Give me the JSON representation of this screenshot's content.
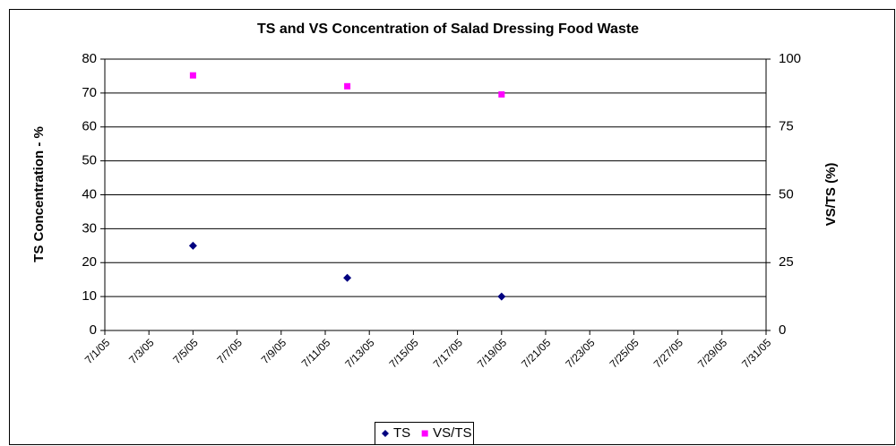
{
  "chart_data": {
    "type": "scatter",
    "title": "TS and VS Concentration of Salad Dressing Food Waste",
    "ylabel": "TS Concentration - %",
    "y2label": "VS/TS (%)",
    "x": [
      "7/5/05",
      "7/12/05",
      "7/19/05"
    ],
    "xlim": [
      "7/1/05",
      "7/31/05"
    ],
    "xticks": [
      "7/1/05",
      "7/3/05",
      "7/5/05",
      "7/7/05",
      "7/9/05",
      "7/11/05",
      "7/13/05",
      "7/15/05",
      "7/17/05",
      "7/19/05",
      "7/21/05",
      "7/23/05",
      "7/25/05",
      "7/27/05",
      "7/29/05",
      "7/31/05"
    ],
    "ylim": [
      0,
      80
    ],
    "yticks": [
      0,
      10,
      20,
      30,
      40,
      50,
      60,
      70,
      80
    ],
    "y2lim": [
      0,
      100
    ],
    "y2ticks": [
      0,
      25,
      50,
      75,
      100
    ],
    "grid": true,
    "legend": "bottom",
    "series": [
      {
        "name": "TS",
        "color": "#000080",
        "marker": "diamond",
        "values": [
          25,
          15.5,
          10
        ]
      },
      {
        "name": "VS/TS",
        "color": "#ff00ff",
        "marker": "square",
        "axis": "y2",
        "values": [
          94,
          90,
          87
        ]
      }
    ]
  }
}
